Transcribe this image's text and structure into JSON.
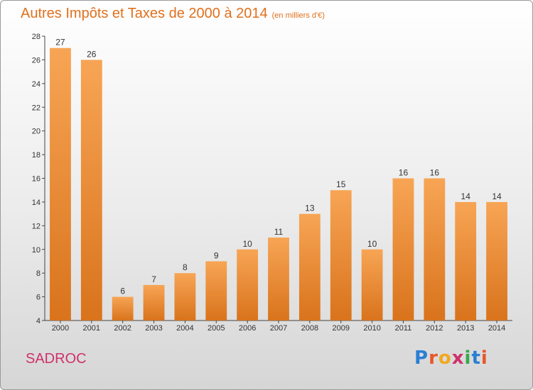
{
  "header": {
    "title": "Autres Impôts et Taxes de 2000 à 2014",
    "unit_note": "(en milliers d'€)"
  },
  "footer": {
    "commune": "SADROC",
    "logo_text": "Proxiti"
  },
  "colors": {
    "title": "#e0701d",
    "commune": "#d0306a",
    "bar_top": "#f7a555",
    "bar_bottom": "#d9731c"
  },
  "chart_data": {
    "type": "bar",
    "title": "Autres Impôts et Taxes de 2000 à 2014",
    "subtitle": "(en milliers d'€)",
    "xlabel": "",
    "ylabel": "",
    "categories": [
      "2000",
      "2001",
      "2002",
      "2003",
      "2004",
      "2005",
      "2006",
      "2007",
      "2008",
      "2009",
      "2010",
      "2011",
      "2012",
      "2013",
      "2014"
    ],
    "values": [
      27,
      26,
      6,
      7,
      8,
      9,
      10,
      11,
      13,
      15,
      10,
      16,
      16,
      14,
      14
    ],
    "ylim": [
      4,
      28
    ],
    "yticks": [
      4,
      6,
      8,
      10,
      12,
      14,
      16,
      18,
      20,
      22,
      24,
      26,
      28
    ],
    "grid": false,
    "data_labels": true
  }
}
